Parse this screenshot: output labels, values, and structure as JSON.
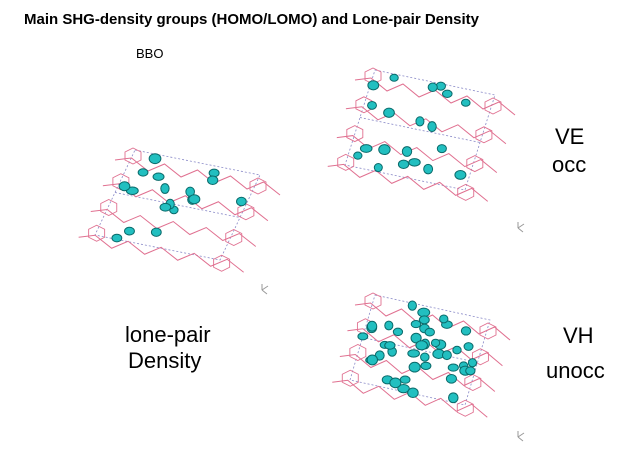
{
  "title": "Main SHG-density groups (HOMO/LOMO) and Lone-pair Density",
  "material": "BBO",
  "panels": [
    {
      "label": [
        "lone-pair",
        "Density"
      ]
    },
    {
      "label": [
        "VE",
        "occ"
      ]
    },
    {
      "label": [
        "VH",
        "unocc"
      ]
    }
  ]
}
